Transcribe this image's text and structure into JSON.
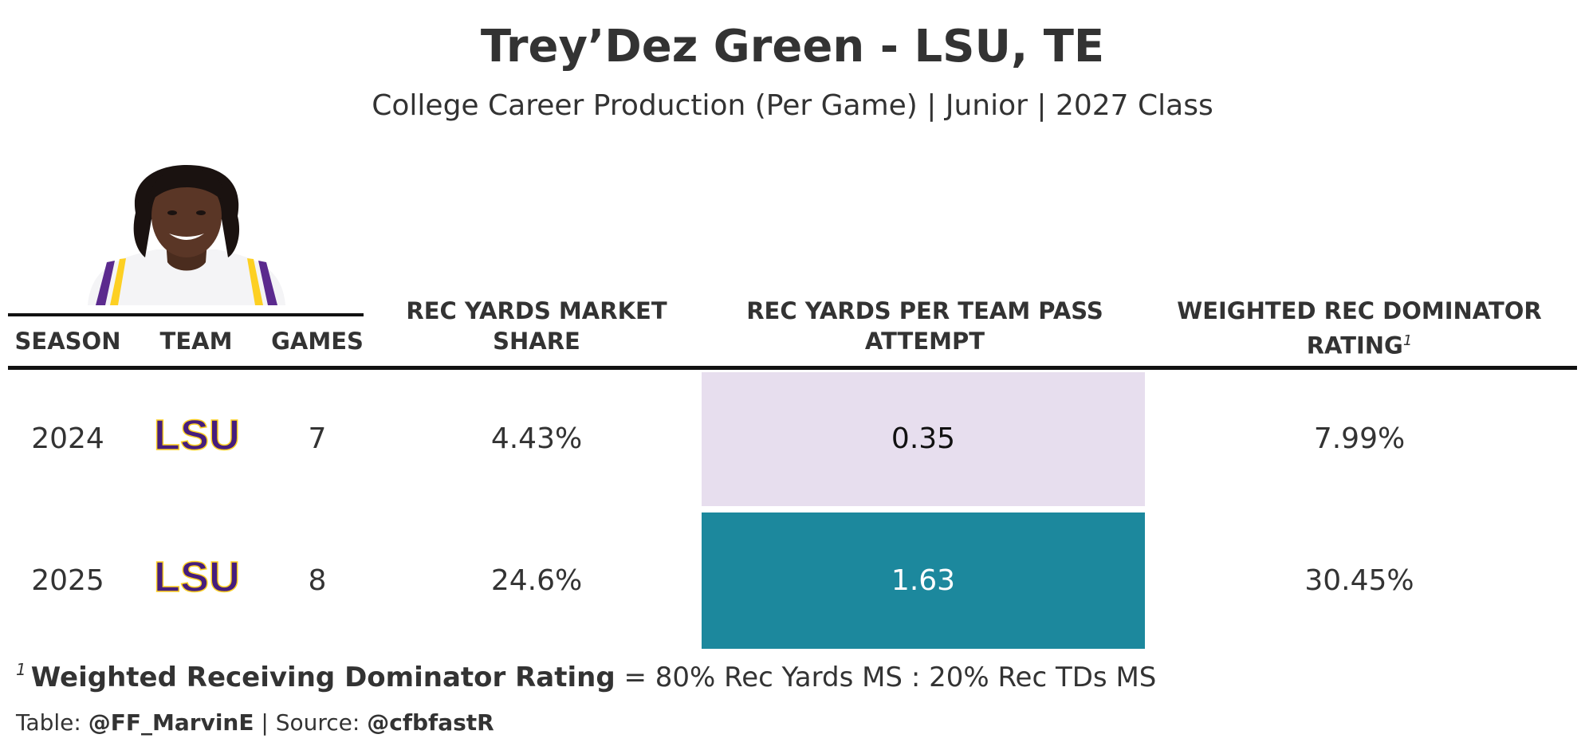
{
  "title": "Trey’Dez Green - LSU, TE",
  "subtitle": "College Career Production (Per Game) | Junior | 2027 Class",
  "colors": {
    "text": "#333333",
    "lsu_purple": "#461D7C",
    "lsu_gold": "#FDD023",
    "low_fill": "#E7DEEE",
    "high_fill": "#1C889D"
  },
  "chart_data": {
    "type": "table",
    "columns": [
      {
        "key": "season",
        "label": "SEASON"
      },
      {
        "key": "team",
        "label": "TEAM"
      },
      {
        "key": "games",
        "label": "GAMES"
      },
      {
        "key": "rec_yards_ms",
        "label": "REC YARDS MARKET SHARE"
      },
      {
        "key": "rec_yards_per_tpa",
        "label": "REC YARDS PER TEAM PASS ATTEMPT"
      },
      {
        "key": "wrdr",
        "label": "WEIGHTED REC DOMINATOR RATING",
        "footnote_mark": "1"
      }
    ],
    "rows": [
      {
        "season": "2024",
        "team": "LSU",
        "games": "7",
        "rec_yards_ms": "4.43%",
        "rec_yards_per_tpa": "0.35",
        "wrdr": "7.99%"
      },
      {
        "season": "2025",
        "team": "LSU",
        "games": "8",
        "rec_yards_ms": "24.6%",
        "rec_yards_per_tpa": "1.63",
        "wrdr": "30.45%"
      }
    ],
    "highlight_column": "rec_yards_per_tpa"
  },
  "footnote": {
    "mark": "1",
    "term": "Weighted Receiving Dominator Rating",
    "definition": " = 80% Rec Yards MS : 20% Rec TDs MS"
  },
  "source": {
    "table_prefix": "Table: ",
    "table_author": "@FF_MarvinE",
    "separator": " | ",
    "source_prefix": "Source: ",
    "source_name": "@cfbfastR"
  },
  "icons": {
    "player_photo": "player-headshot-icon",
    "team_logo": "lsu-logo-icon"
  }
}
